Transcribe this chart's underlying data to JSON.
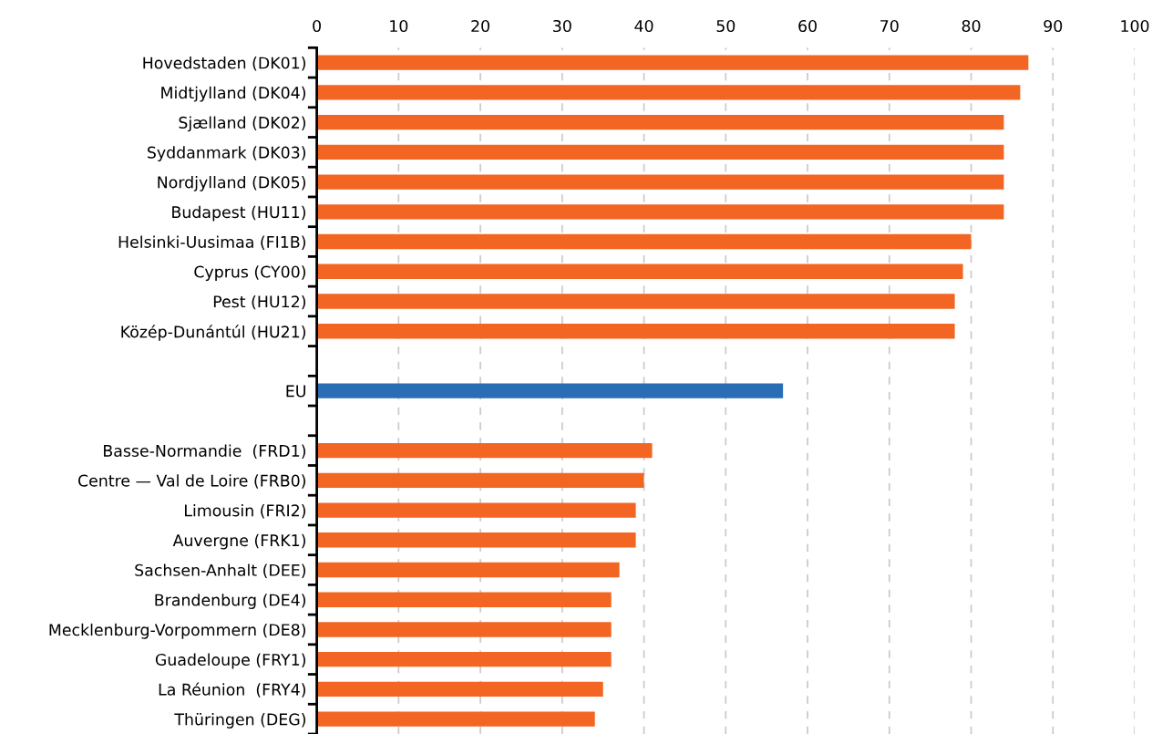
{
  "chart_data": {
    "type": "bar",
    "orientation": "horizontal",
    "categories": [
      "Hovedstaden (DK01)",
      "Midtjylland (DK04)",
      "Sjælland (DK02)",
      "Syddanmark (DK03)",
      "Nordjylland (DK05)",
      "Budapest (HU11)",
      "Helsinki-Uusimaa (FI1B)",
      "Cyprus (CY00)",
      "Pest (HU12)",
      "Közép-Dunántúl (HU21)",
      null,
      "EU",
      null,
      "Basse-Normandie  (FRD1)",
      "Centre — Val de Loire (FRB0)",
      "Limousin (FRI2)",
      "Auvergne (FRK1)",
      "Sachsen-Anhalt (DEE)",
      "Brandenburg (DE4)",
      "Mecklenburg-Vorpommern (DE8)",
      "Guadeloupe (FRY1)",
      "La Réunion  (FRY4)",
      "Thüringen (DEG)"
    ],
    "values": [
      87,
      86,
      84,
      84,
      84,
      84,
      80,
      79,
      78,
      78,
      null,
      57,
      null,
      41,
      40,
      39,
      39,
      37,
      36,
      36,
      36,
      35,
      34
    ],
    "colors": [
      "#f26522",
      "#f26522",
      "#f26522",
      "#f26522",
      "#f26522",
      "#f26522",
      "#f26522",
      "#f26522",
      "#f26522",
      "#f26522",
      null,
      "#2a6db5",
      null,
      "#f26522",
      "#f26522",
      "#f26522",
      "#f26522",
      "#f26522",
      "#f26522",
      "#f26522",
      "#f26522",
      "#f26522",
      "#f26522"
    ],
    "xlim": [
      0,
      100
    ],
    "xticks": [
      0,
      10,
      20,
      30,
      40,
      50,
      60,
      70,
      80,
      90,
      100
    ],
    "grid": "x"
  }
}
